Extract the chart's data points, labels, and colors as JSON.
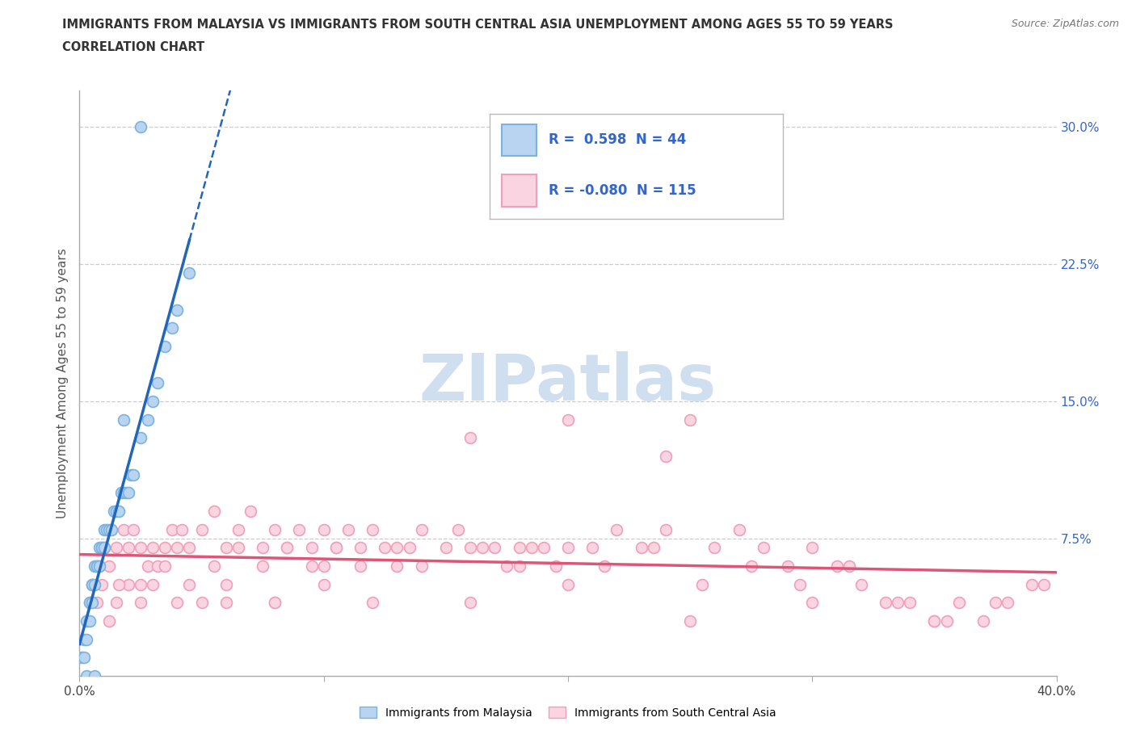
{
  "title_line1": "IMMIGRANTS FROM MALAYSIA VS IMMIGRANTS FROM SOUTH CENTRAL ASIA UNEMPLOYMENT AMONG AGES 55 TO 59 YEARS",
  "title_line2": "CORRELATION CHART",
  "source_text": "Source: ZipAtlas.com",
  "ylabel": "Unemployment Among Ages 55 to 59 years",
  "xlim": [
    0.0,
    0.4
  ],
  "ylim": [
    0.0,
    0.32
  ],
  "right_ytick_labels": [
    "7.5%",
    "15.0%",
    "22.5%",
    "30.0%"
  ],
  "right_ytick_values": [
    0.075,
    0.15,
    0.225,
    0.3
  ],
  "grid_color": "#cccccc",
  "background_color": "#ffffff",
  "watermark_text": "ZIPatlas",
  "watermark_color": "#d0dff0",
  "series1_edge": "#7ab3e0",
  "series1_fill": "#b8d4f0",
  "series2_edge": "#f0a0b8",
  "series2_fill": "#fad4e0",
  "trend1_color": "#2266bb",
  "trend2_color": "#dd5577",
  "R1": 0.598,
  "N1": 44,
  "R2": -0.08,
  "N2": 115,
  "legend_label1": "Immigrants from Malaysia",
  "legend_label2": "Immigrants from South Central Asia",
  "malaysia_x": [
    0.001,
    0.002,
    0.002,
    0.003,
    0.003,
    0.004,
    0.004,
    0.005,
    0.005,
    0.005,
    0.006,
    0.006,
    0.007,
    0.007,
    0.008,
    0.008,
    0.009,
    0.009,
    0.01,
    0.01,
    0.011,
    0.012,
    0.013,
    0.014,
    0.015,
    0.016,
    0.017,
    0.018,
    0.019,
    0.02,
    0.021,
    0.022,
    0.025,
    0.028,
    0.03,
    0.032,
    0.035,
    0.038,
    0.04,
    0.045,
    0.003,
    0.006,
    0.018,
    0.025
  ],
  "malaysia_y": [
    0.01,
    0.01,
    0.02,
    0.02,
    0.03,
    0.03,
    0.04,
    0.04,
    0.05,
    0.05,
    0.05,
    0.06,
    0.06,
    0.06,
    0.06,
    0.07,
    0.07,
    0.07,
    0.07,
    0.08,
    0.08,
    0.08,
    0.08,
    0.09,
    0.09,
    0.09,
    0.1,
    0.1,
    0.1,
    0.1,
    0.11,
    0.11,
    0.13,
    0.14,
    0.15,
    0.16,
    0.18,
    0.19,
    0.2,
    0.22,
    0.0,
    0.0,
    0.14,
    0.3
  ],
  "sca_x": [
    0.005,
    0.008,
    0.01,
    0.012,
    0.015,
    0.018,
    0.02,
    0.022,
    0.025,
    0.028,
    0.03,
    0.032,
    0.035,
    0.038,
    0.04,
    0.042,
    0.045,
    0.05,
    0.055,
    0.06,
    0.065,
    0.07,
    0.075,
    0.08,
    0.085,
    0.09,
    0.095,
    0.1,
    0.105,
    0.11,
    0.115,
    0.12,
    0.13,
    0.14,
    0.15,
    0.16,
    0.17,
    0.18,
    0.19,
    0.2,
    0.21,
    0.22,
    0.23,
    0.24,
    0.25,
    0.26,
    0.27,
    0.28,
    0.29,
    0.3,
    0.31,
    0.32,
    0.33,
    0.34,
    0.35,
    0.36,
    0.37,
    0.38,
    0.39,
    0.025,
    0.035,
    0.045,
    0.055,
    0.065,
    0.075,
    0.085,
    0.095,
    0.105,
    0.115,
    0.125,
    0.135,
    0.155,
    0.165,
    0.175,
    0.185,
    0.195,
    0.215,
    0.235,
    0.255,
    0.275,
    0.295,
    0.315,
    0.335,
    0.355,
    0.375,
    0.395,
    0.02,
    0.03,
    0.05,
    0.06,
    0.08,
    0.1,
    0.12,
    0.14,
    0.16,
    0.18,
    0.2,
    0.25,
    0.3,
    0.35,
    0.015,
    0.025,
    0.04,
    0.06,
    0.08,
    0.1,
    0.13,
    0.16,
    0.2,
    0.24,
    0.004,
    0.007,
    0.009,
    0.012,
    0.016
  ],
  "sca_y": [
    0.05,
    0.06,
    0.07,
    0.06,
    0.07,
    0.08,
    0.07,
    0.08,
    0.07,
    0.06,
    0.07,
    0.06,
    0.07,
    0.08,
    0.07,
    0.08,
    0.07,
    0.08,
    0.09,
    0.07,
    0.08,
    0.09,
    0.07,
    0.08,
    0.07,
    0.08,
    0.07,
    0.08,
    0.07,
    0.08,
    0.07,
    0.08,
    0.07,
    0.08,
    0.07,
    0.07,
    0.07,
    0.07,
    0.07,
    0.07,
    0.07,
    0.08,
    0.07,
    0.08,
    0.14,
    0.07,
    0.08,
    0.07,
    0.06,
    0.07,
    0.06,
    0.05,
    0.04,
    0.04,
    0.03,
    0.04,
    0.03,
    0.04,
    0.05,
    0.05,
    0.06,
    0.05,
    0.06,
    0.07,
    0.06,
    0.07,
    0.06,
    0.07,
    0.06,
    0.07,
    0.07,
    0.08,
    0.07,
    0.06,
    0.07,
    0.06,
    0.06,
    0.07,
    0.05,
    0.06,
    0.05,
    0.06,
    0.04,
    0.03,
    0.04,
    0.05,
    0.05,
    0.05,
    0.04,
    0.04,
    0.04,
    0.05,
    0.04,
    0.06,
    0.04,
    0.06,
    0.05,
    0.03,
    0.04,
    0.03,
    0.04,
    0.04,
    0.04,
    0.05,
    0.04,
    0.06,
    0.06,
    0.13,
    0.14,
    0.12,
    0.04,
    0.04,
    0.05,
    0.03,
    0.05
  ]
}
